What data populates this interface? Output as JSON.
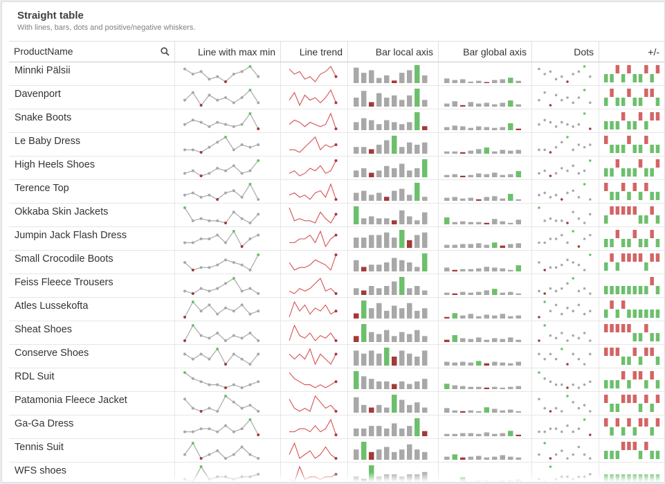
{
  "header": {
    "title": "Straight table",
    "subtitle": "With lines, bars, dots and positive/negative whiskers."
  },
  "columns": [
    "ProductName",
    "Line with max min",
    "Line trend",
    "Bar local axis",
    "Bar global axis",
    "Dots",
    "+/-"
  ],
  "colors": {
    "grey": "#a8a8a8",
    "green": "#6cc06c",
    "red": "#d46464",
    "darkred": "#a33a3a",
    "trend": "#d45050"
  },
  "rows": [
    {
      "name": "Minnki Pälsii",
      "series": [
        6,
        4,
        5,
        2,
        3,
        1,
        4,
        5,
        7,
        3
      ],
      "signs": [
        1,
        1,
        -1,
        1,
        -1,
        1,
        1,
        -1,
        1,
        -1
      ]
    },
    {
      "name": "Davenport",
      "series": [
        4,
        7,
        2,
        6,
        4,
        5,
        3,
        5,
        8,
        3
      ],
      "signs": [
        1,
        -1,
        1,
        1,
        -1,
        1,
        1,
        -1,
        -1,
        1
      ]
    },
    {
      "name": "Snake Boots",
      "series": [
        4,
        6,
        5,
        3,
        5,
        4,
        3,
        4,
        9,
        2
      ],
      "signs": [
        1,
        1,
        1,
        -1,
        1,
        1,
        -1,
        1,
        -1,
        -1
      ]
    },
    {
      "name": "Le Baby Dress",
      "series": [
        3,
        3,
        2,
        4,
        6,
        8,
        3,
        5,
        4,
        5
      ],
      "signs": [
        -1,
        1,
        1,
        1,
        -1,
        1,
        1,
        -1,
        1,
        1
      ]
    },
    {
      "name": "High Heels Shoes",
      "series": [
        3,
        4,
        2,
        3,
        5,
        4,
        6,
        3,
        4,
        8
      ],
      "signs": [
        1,
        1,
        -1,
        1,
        1,
        1,
        -1,
        1,
        1,
        -1
      ]
    },
    {
      "name": "Terence Top",
      "series": [
        4,
        5,
        3,
        4,
        2,
        5,
        6,
        3,
        9,
        2
      ],
      "signs": [
        -1,
        1,
        1,
        -1,
        1,
        -1,
        1,
        -1,
        1,
        1
      ]
    },
    {
      "name": "Okkaba Skin Jackets",
      "series": [
        9,
        3,
        4,
        3,
        3,
        2,
        7,
        4,
        2,
        6
      ],
      "signs": [
        1,
        -1,
        -1,
        -1,
        -1,
        -1,
        1,
        1,
        -1,
        1
      ]
    },
    {
      "name": "Jumpin Jack Flash Dress",
      "series": [
        4,
        4,
        5,
        5,
        6,
        4,
        7,
        3,
        5,
        6
      ],
      "signs": [
        1,
        1,
        -1,
        1,
        1,
        -1,
        1,
        1,
        -1,
        1
      ]
    },
    {
      "name": "Small Crocodile Boots",
      "series": [
        5,
        2,
        3,
        3,
        4,
        6,
        5,
        4,
        2,
        8
      ],
      "signs": [
        1,
        -1,
        1,
        -1,
        -1,
        -1,
        -1,
        1,
        -1,
        -1
      ]
    },
    {
      "name": "Feiss Fleece Trousers",
      "series": [
        3,
        2,
        4,
        3,
        4,
        6,
        8,
        3,
        4,
        2
      ],
      "signs": [
        1,
        1,
        1,
        1,
        1,
        1,
        1,
        1,
        -1,
        1
      ]
    },
    {
      "name": "Atles Lussekofta",
      "series": [
        2,
        7,
        4,
        6,
        3,
        5,
        4,
        6,
        3,
        4
      ],
      "signs": [
        1,
        -1,
        1,
        -1,
        1,
        1,
        1,
        1,
        1,
        1
      ]
    },
    {
      "name": "Sheat Shoes",
      "series": [
        3,
        9,
        5,
        4,
        6,
        3,
        5,
        4,
        6,
        3
      ],
      "signs": [
        -1,
        -1,
        -1,
        -1,
        -1,
        1,
        1,
        -1,
        1,
        1
      ]
    },
    {
      "name": "Conserve Shoes",
      "series": [
        5,
        4,
        5,
        4,
        6,
        3,
        5,
        4,
        3,
        5
      ],
      "signs": [
        -1,
        -1,
        -1,
        1,
        1,
        -1,
        1,
        -1,
        -1,
        1
      ]
    },
    {
      "name": "RDL Suit",
      "series": [
        7,
        5,
        4,
        3,
        3,
        2,
        3,
        2,
        3,
        4
      ],
      "signs": [
        1,
        1,
        1,
        -1,
        1,
        -1,
        -1,
        1,
        -1,
        1
      ]
    },
    {
      "name": "Patamonia Fleece Jacket",
      "series": [
        6,
        3,
        2,
        3,
        2,
        7,
        5,
        3,
        4,
        2
      ],
      "signs": [
        -1,
        1,
        1,
        -1,
        -1,
        -1,
        1,
        -1,
        1,
        -1
      ]
    },
    {
      "name": "Ga-Ga Dress",
      "series": [
        3,
        3,
        4,
        4,
        3,
        5,
        3,
        4,
        7,
        2
      ],
      "signs": [
        -1,
        1,
        -1,
        1,
        -1,
        1,
        -1,
        -1,
        1,
        -1
      ]
    },
    {
      "name": "Tennis Suit",
      "series": [
        4,
        7,
        3,
        4,
        5,
        3,
        4,
        6,
        4,
        3
      ],
      "signs": [
        1,
        1,
        1,
        -1,
        -1,
        -1,
        1,
        -1,
        1,
        1
      ]
    },
    {
      "name": "WFS shoes",
      "series": [
        3,
        2,
        8,
        3,
        4,
        4,
        3,
        4,
        4,
        5
      ],
      "signs": [
        1,
        1,
        1,
        1,
        1,
        1,
        1,
        1,
        1,
        1
      ]
    }
  ]
}
